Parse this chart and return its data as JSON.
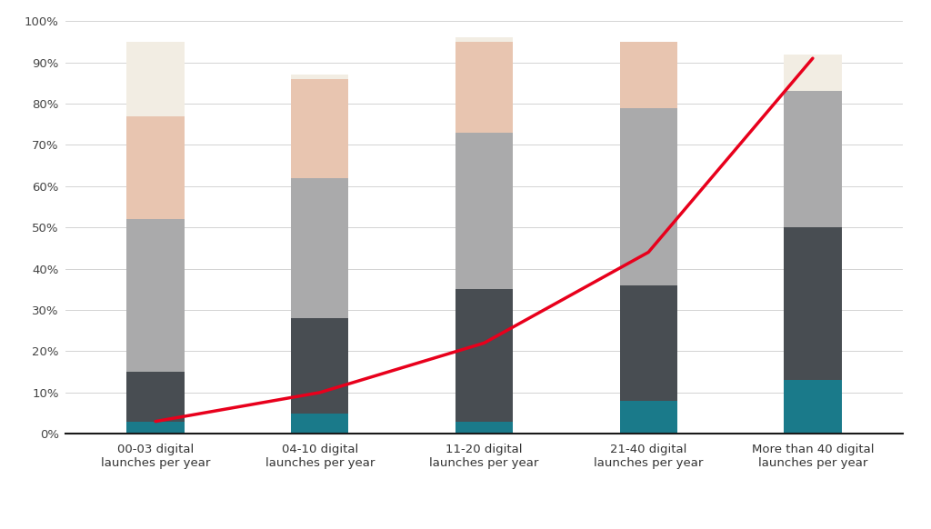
{
  "categories": [
    "00-03 digital\nlaunches per year",
    "04-10 digital\nlaunches per year",
    "11-20 digital\nlaunches per year",
    "21-40 digital\nlaunches per year",
    "More than 40 digital\nlaunches per year"
  ],
  "segments": {
    "teal": [
      3,
      5,
      3,
      8,
      13
    ],
    "dark_gray": [
      12,
      23,
      32,
      28,
      37
    ],
    "light_gray": [
      37,
      34,
      38,
      43,
      33
    ],
    "salmon": [
      25,
      24,
      22,
      16,
      0
    ],
    "cream": [
      18,
      1,
      1,
      0,
      9
    ]
  },
  "segment_colors": {
    "teal": "#1a7a8a",
    "dark_gray": "#484d52",
    "light_gray": "#aaaaab",
    "salmon": "#e8c5b0",
    "cream": "#f2ede3"
  },
  "line_values": [
    3,
    10,
    22,
    44,
    91
  ],
  "line_color": "#e8001c",
  "ylim": [
    0,
    100
  ],
  "yticks": [
    0,
    10,
    20,
    30,
    40,
    50,
    60,
    70,
    80,
    90,
    100
  ],
  "background_color": "#ffffff",
  "grid_color": "#cccccc",
  "axis_color": "#1a1a1a",
  "bar_width": 0.35,
  "figsize": [
    10.24,
    5.82
  ],
  "dpi": 100
}
